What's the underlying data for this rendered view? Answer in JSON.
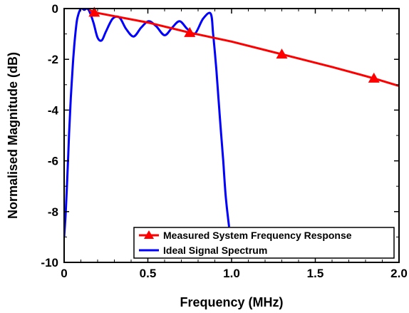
{
  "chart_data": {
    "type": "line",
    "xlabel": "Frequency (MHz)",
    "ylabel": "Normalised Magnitude (dB)",
    "xlim": [
      0,
      2.0
    ],
    "ylim": [
      -10,
      0
    ],
    "x_ticks": [
      0,
      0.5,
      1.0,
      1.5,
      2.0
    ],
    "x_tick_labels": [
      "0",
      "0.5",
      "1.0",
      "1.5",
      "2.0"
    ],
    "y_ticks": [
      0,
      -2,
      -4,
      -6,
      -8,
      -10
    ],
    "y_tick_labels": [
      "0",
      "-2",
      "-4",
      "-6",
      "-8",
      "-10"
    ],
    "grid": false,
    "legend_position": "bottom-right",
    "series": [
      {
        "name": "Measured System Frequency Response",
        "color": "#ff0000",
        "marker": "triangle",
        "x": [
          0.15,
          0.18,
          0.3,
          0.5,
          0.75,
          1.0,
          1.3,
          1.6,
          1.85,
          2.0
        ],
        "y": [
          -0.05,
          -0.15,
          -0.3,
          -0.55,
          -0.95,
          -1.3,
          -1.8,
          -2.3,
          -2.75,
          -3.05
        ],
        "marker_x": [
          0.18,
          0.75,
          1.3,
          1.85
        ],
        "marker_y": [
          -0.15,
          -0.95,
          -1.8,
          -2.75
        ]
      },
      {
        "name": "Ideal Signal Spectrum",
        "color": "#0000ff",
        "marker": "none",
        "x": [
          0.0,
          0.01,
          0.02,
          0.03,
          0.04,
          0.05,
          0.06,
          0.07,
          0.08,
          0.1,
          0.12,
          0.135,
          0.15,
          0.175,
          0.2,
          0.225,
          0.25,
          0.29,
          0.33,
          0.37,
          0.415,
          0.46,
          0.505,
          0.55,
          0.6,
          0.645,
          0.69,
          0.735,
          0.78,
          0.83,
          0.875,
          0.89,
          0.91,
          0.93,
          0.95,
          0.965,
          0.985
        ],
        "y": [
          -9.0,
          -8.0,
          -6.5,
          -4.9,
          -3.5,
          -2.4,
          -1.5,
          -0.8,
          -0.35,
          0.0,
          -0.05,
          0.0,
          -0.1,
          -0.55,
          -1.15,
          -1.25,
          -0.9,
          -0.4,
          -0.35,
          -0.8,
          -1.1,
          -0.75,
          -0.5,
          -0.7,
          -1.05,
          -0.75,
          -0.5,
          -0.8,
          -1.0,
          -0.4,
          -0.2,
          -1.0,
          -2.5,
          -4.3,
          -6.0,
          -7.4,
          -8.6
        ]
      }
    ]
  }
}
